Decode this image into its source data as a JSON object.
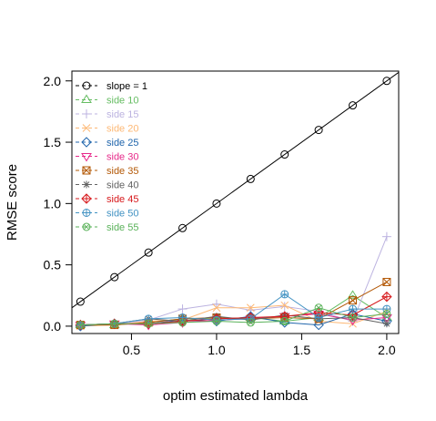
{
  "chart_data": {
    "type": "line",
    "title": "",
    "xlabel": "optim estimated lambda",
    "ylabel": "RMSE score",
    "xlim": [
      0.15,
      2.07
    ],
    "ylim": [
      -0.06,
      2.08
    ],
    "xticks": [
      "0.5",
      "1.0",
      "1.5",
      "2.0"
    ],
    "yticks": [
      "0.0",
      "0.5",
      "1.0",
      "1.5",
      "2.0"
    ],
    "grid": false,
    "legend_position": "top-left",
    "reference_line": {
      "name": "slope = 1",
      "intercept": 0,
      "slope": 1,
      "color": "#000000",
      "marker": "circle"
    },
    "x": [
      0.2,
      0.4,
      0.6,
      0.8,
      1.0,
      1.2,
      1.4,
      1.6,
      1.8,
      2.0
    ],
    "series": [
      {
        "name": "side 10",
        "color": "#66bd63",
        "marker": "triangle-up",
        "values": [
          0.01,
          0.01,
          0.03,
          0.06,
          0.06,
          0.07,
          0.04,
          0.07,
          0.25,
          0.07
        ]
      },
      {
        "name": "side 15",
        "color": "#bcb3e0",
        "marker": "plus",
        "values": [
          0.01,
          0.02,
          0.05,
          0.14,
          0.18,
          0.13,
          0.16,
          0.12,
          0.04,
          0.73
        ]
      },
      {
        "name": "side 20",
        "color": "#fdb875",
        "marker": "cross",
        "values": [
          0.0,
          0.01,
          0.04,
          0.05,
          0.15,
          0.15,
          0.17,
          0.04,
          0.02,
          0.12
        ]
      },
      {
        "name": "side 25",
        "color": "#2166ac",
        "marker": "diamond",
        "values": [
          0.0,
          0.02,
          0.02,
          0.05,
          0.04,
          0.08,
          0.03,
          0.01,
          0.1,
          0.04
        ]
      },
      {
        "name": "side 30",
        "color": "#e7298a",
        "marker": "triangle-down",
        "values": [
          0.01,
          0.02,
          0.01,
          0.03,
          0.05,
          0.06,
          0.08,
          0.1,
          0.05,
          0.07
        ]
      },
      {
        "name": "side 35",
        "color": "#b35806",
        "marker": "square-cross",
        "values": [
          0.01,
          0.01,
          0.03,
          0.06,
          0.07,
          0.06,
          0.07,
          0.06,
          0.21,
          0.36
        ]
      },
      {
        "name": "side 40",
        "color": "#636363",
        "marker": "asterisk",
        "values": [
          0.01,
          0.02,
          0.06,
          0.04,
          0.08,
          0.05,
          0.09,
          0.06,
          0.07,
          0.02
        ]
      },
      {
        "name": "side 45",
        "color": "#d7191c",
        "marker": "diamond-plus",
        "values": [
          0.01,
          0.02,
          0.02,
          0.04,
          0.06,
          0.07,
          0.08,
          0.11,
          0.09,
          0.24
        ]
      },
      {
        "name": "side 50",
        "color": "#4393c3",
        "marker": "circle-plus",
        "values": [
          0.01,
          0.02,
          0.06,
          0.07,
          0.05,
          0.06,
          0.26,
          0.07,
          0.14,
          0.14
        ]
      },
      {
        "name": "side 55",
        "color": "#5ab25a",
        "marker": "circle-cross",
        "values": [
          0.01,
          0.02,
          0.02,
          0.03,
          0.04,
          0.03,
          0.04,
          0.15,
          0.07,
          0.1
        ]
      }
    ]
  }
}
